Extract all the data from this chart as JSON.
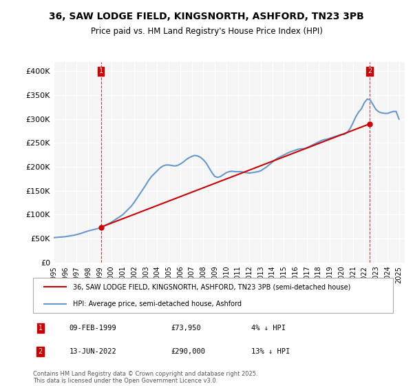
{
  "title": "36, SAW LODGE FIELD, KINGSNORTH, ASHFORD, TN23 3PB",
  "subtitle": "Price paid vs. HM Land Registry's House Price Index (HPI)",
  "ylabel": "",
  "ylim": [
    0,
    420000
  ],
  "yticks": [
    0,
    50000,
    100000,
    150000,
    200000,
    250000,
    300000,
    350000,
    400000
  ],
  "ytick_labels": [
    "£0",
    "£50K",
    "£100K",
    "£150K",
    "£200K",
    "£250K",
    "£300K",
    "£350K",
    "£400K"
  ],
  "legend_property_label": "36, SAW LODGE FIELD, KINGSNORTH, ASHFORD, TN23 3PB (semi-detached house)",
  "legend_hpi_label": "HPI: Average price, semi-detached house, Ashford",
  "marker1_date": "09-FEB-1999",
  "marker1_price": "£73,950",
  "marker1_hpi": "4% ↓ HPI",
  "marker1_year": 1999.1,
  "marker1_value": 73950,
  "marker2_date": "13-JUN-2022",
  "marker2_price": "£290,000",
  "marker2_hpi": "13% ↓ HPI",
  "marker2_year": 2022.45,
  "marker2_value": 290000,
  "property_color": "#cc0000",
  "hpi_color": "#6699cc",
  "vline_color": "#cc0000",
  "background_color": "#f5f5f5",
  "footnote": "Contains HM Land Registry data © Crown copyright and database right 2025.\nThis data is licensed under the Open Government Licence v3.0.",
  "hpi_data_years": [
    1995.0,
    1995.25,
    1995.5,
    1995.75,
    1996.0,
    1996.25,
    1996.5,
    1996.75,
    1997.0,
    1997.25,
    1997.5,
    1997.75,
    1998.0,
    1998.25,
    1998.5,
    1998.75,
    1999.0,
    1999.25,
    1999.5,
    1999.75,
    2000.0,
    2000.25,
    2000.5,
    2000.75,
    2001.0,
    2001.25,
    2001.5,
    2001.75,
    2002.0,
    2002.25,
    2002.5,
    2002.75,
    2003.0,
    2003.25,
    2003.5,
    2003.75,
    2004.0,
    2004.25,
    2004.5,
    2004.75,
    2005.0,
    2005.25,
    2005.5,
    2005.75,
    2006.0,
    2006.25,
    2006.5,
    2006.75,
    2007.0,
    2007.25,
    2007.5,
    2007.75,
    2008.0,
    2008.25,
    2008.5,
    2008.75,
    2009.0,
    2009.25,
    2009.5,
    2009.75,
    2010.0,
    2010.25,
    2010.5,
    2010.75,
    2011.0,
    2011.25,
    2011.5,
    2011.75,
    2012.0,
    2012.25,
    2012.5,
    2012.75,
    2013.0,
    2013.25,
    2013.5,
    2013.75,
    2014.0,
    2014.25,
    2014.5,
    2014.75,
    2015.0,
    2015.25,
    2015.5,
    2015.75,
    2016.0,
    2016.25,
    2016.5,
    2016.75,
    2017.0,
    2017.25,
    2017.5,
    2017.75,
    2018.0,
    2018.25,
    2018.5,
    2018.75,
    2019.0,
    2019.25,
    2019.5,
    2019.75,
    2020.0,
    2020.25,
    2020.5,
    2020.75,
    2021.0,
    2021.25,
    2021.5,
    2021.75,
    2022.0,
    2022.25,
    2022.5,
    2022.75,
    2023.0,
    2023.25,
    2023.5,
    2023.75,
    2024.0,
    2024.25,
    2024.5,
    2024.75,
    2025.0
  ],
  "hpi_data_values": [
    52000,
    52500,
    53000,
    53500,
    54000,
    55000,
    56000,
    57000,
    58500,
    60000,
    62000,
    64000,
    66000,
    67500,
    69000,
    70500,
    72000,
    75000,
    78000,
    81000,
    84000,
    88000,
    92000,
    96000,
    100000,
    106000,
    112000,
    118000,
    126000,
    135000,
    144000,
    153000,
    162000,
    172000,
    180000,
    186000,
    192000,
    198000,
    202000,
    204000,
    204000,
    203000,
    202000,
    203000,
    206000,
    210000,
    215000,
    219000,
    222000,
    224000,
    223000,
    220000,
    215000,
    208000,
    198000,
    188000,
    180000,
    178000,
    180000,
    184000,
    188000,
    190000,
    191000,
    190000,
    190000,
    190000,
    189000,
    188000,
    187000,
    188000,
    189000,
    190000,
    192000,
    196000,
    200000,
    205000,
    210000,
    215000,
    219000,
    222000,
    225000,
    228000,
    231000,
    233000,
    235000,
    237000,
    238000,
    238000,
    240000,
    243000,
    246000,
    249000,
    252000,
    255000,
    257000,
    258000,
    260000,
    262000,
    264000,
    266000,
    268000,
    268000,
    272000,
    280000,
    292000,
    305000,
    315000,
    322000,
    335000,
    342000,
    340000,
    330000,
    320000,
    315000,
    313000,
    312000,
    312000,
    314000,
    316000,
    316000,
    300000
  ],
  "prop_data_years": [
    1999.1,
    2022.45
  ],
  "prop_data_values": [
    73950,
    290000
  ],
  "xlim_start": 1995.0,
  "xlim_end": 2025.5,
  "xtick_years": [
    1995,
    1996,
    1997,
    1998,
    1999,
    2000,
    2001,
    2002,
    2003,
    2004,
    2005,
    2006,
    2007,
    2008,
    2009,
    2010,
    2011,
    2012,
    2013,
    2014,
    2015,
    2016,
    2017,
    2018,
    2019,
    2020,
    2021,
    2022,
    2023,
    2024,
    2025
  ]
}
